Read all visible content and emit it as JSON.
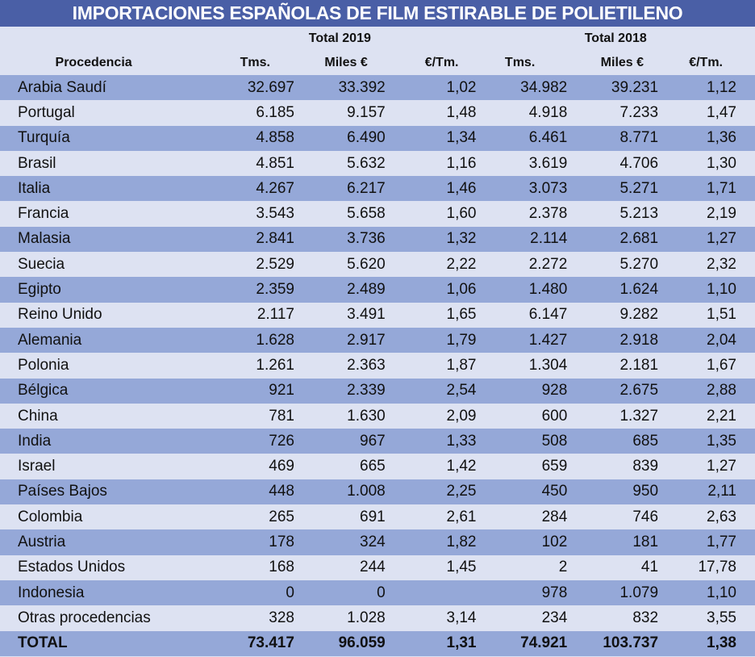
{
  "title": "IMPORTACIONES ESPAÑOLAS DE FILM ESTIRABLE DE POLIETILENO",
  "headers": {
    "year1": "Total 2019",
    "year2": "Total 2018",
    "procedencia": "Procedencia",
    "tms": "Tms.",
    "miles": "Miles €",
    "eurtm": "€/Tm."
  },
  "rows": [
    [
      "Arabia Saudí",
      "32.697",
      "33.392",
      "1,02",
      "34.982",
      "39.231",
      "1,12"
    ],
    [
      "Portugal",
      "6.185",
      "9.157",
      "1,48",
      "4.918",
      "7.233",
      "1,47"
    ],
    [
      "Turquía",
      "4.858",
      "6.490",
      "1,34",
      "6.461",
      "8.771",
      "1,36"
    ],
    [
      "Brasil",
      "4.851",
      "5.632",
      "1,16",
      "3.619",
      "4.706",
      "1,30"
    ],
    [
      "Italia",
      "4.267",
      "6.217",
      "1,46",
      "3.073",
      "5.271",
      "1,71"
    ],
    [
      "Francia",
      "3.543",
      "5.658",
      "1,60",
      "2.378",
      "5.213",
      "2,19"
    ],
    [
      "Malasia",
      "2.841",
      "3.736",
      "1,32",
      "2.114",
      "2.681",
      "1,27"
    ],
    [
      "Suecia",
      "2.529",
      "5.620",
      "2,22",
      "2.272",
      "5.270",
      "2,32"
    ],
    [
      "Egipto",
      "2.359",
      "2.489",
      "1,06",
      "1.480",
      "1.624",
      "1,10"
    ],
    [
      "Reino Unido",
      "2.117",
      "3.491",
      "1,65",
      "6.147",
      "9.282",
      "1,51"
    ],
    [
      "Alemania",
      "1.628",
      "2.917",
      "1,79",
      "1.427",
      "2.918",
      "2,04"
    ],
    [
      "Polonia",
      "1.261",
      "2.363",
      "1,87",
      "1.304",
      "2.181",
      "1,67"
    ],
    [
      "Bélgica",
      "921",
      "2.339",
      "2,54",
      "928",
      "2.675",
      "2,88"
    ],
    [
      "China",
      "781",
      "1.630",
      "2,09",
      "600",
      "1.327",
      "2,21"
    ],
    [
      "India",
      "726",
      "967",
      "1,33",
      "508",
      "685",
      "1,35"
    ],
    [
      "Israel",
      "469",
      "665",
      "1,42",
      "659",
      "839",
      "1,27"
    ],
    [
      "Países Bajos",
      "448",
      "1.008",
      "2,25",
      "450",
      "950",
      "2,11"
    ],
    [
      "Colombia",
      "265",
      "691",
      "2,61",
      "284",
      "746",
      "2,63"
    ],
    [
      "Austria",
      "178",
      "324",
      "1,82",
      "102",
      "181",
      "1,77"
    ],
    [
      "Estados Unidos",
      "168",
      "244",
      "1,45",
      "2",
      "41",
      "17,78"
    ],
    [
      "Indonesia",
      "0",
      "0",
      "",
      "978",
      "1.079",
      "1,10"
    ],
    [
      "Otras procedencias",
      "328",
      "1.028",
      "3,14",
      "234",
      "832",
      "3,55"
    ],
    [
      "TOTAL",
      "73.417",
      "96.059",
      "1,31",
      "74.921",
      "103.737",
      "1,38"
    ]
  ]
}
